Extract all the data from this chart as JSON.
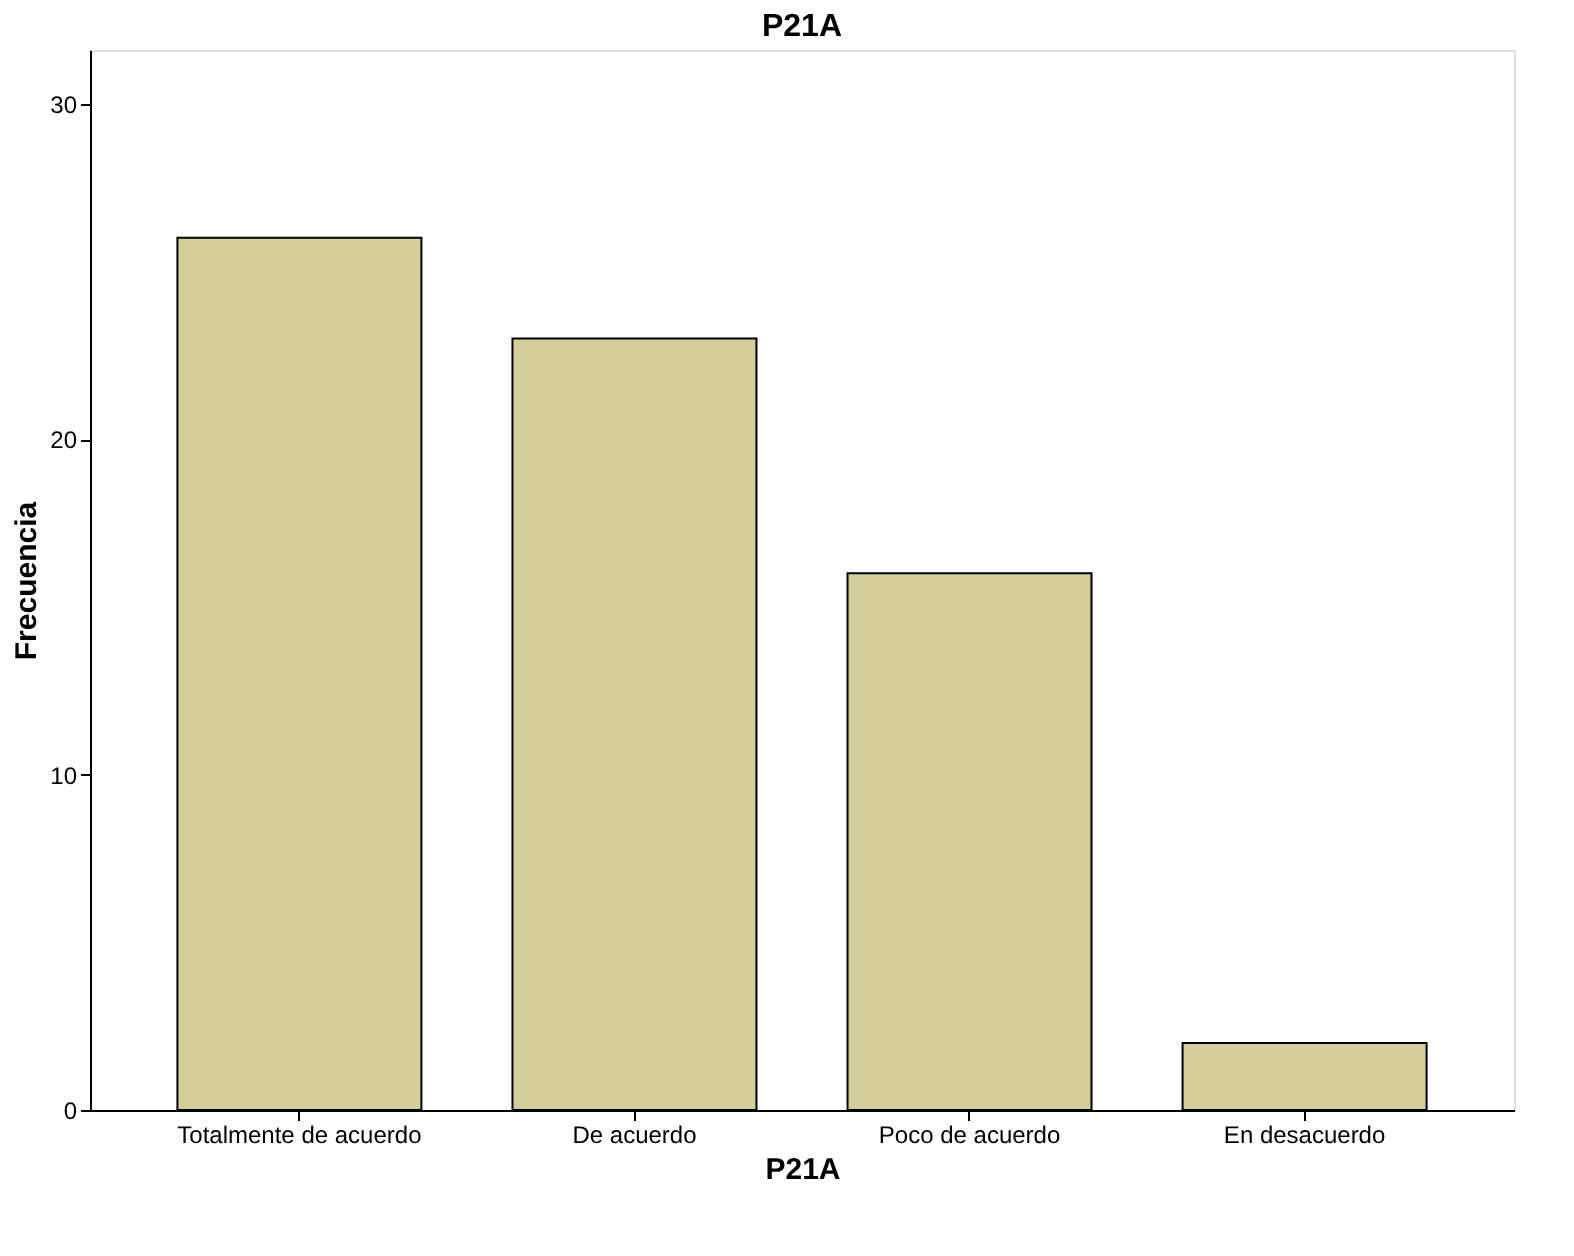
{
  "chart_data": {
    "type": "bar",
    "title": "P21A",
    "xlabel": "P21A",
    "ylabel": "Frecuencia",
    "categories": [
      "Totalmente de acuerdo",
      "De acuerdo",
      "Poco de acuerdo",
      "En desacuerdo"
    ],
    "values": [
      26,
      23,
      16,
      2
    ],
    "color": "#d3ce97",
    "ylim": [
      0,
      31.6
    ],
    "yticks": [
      0,
      10,
      20,
      30
    ],
    "grid": false
  }
}
